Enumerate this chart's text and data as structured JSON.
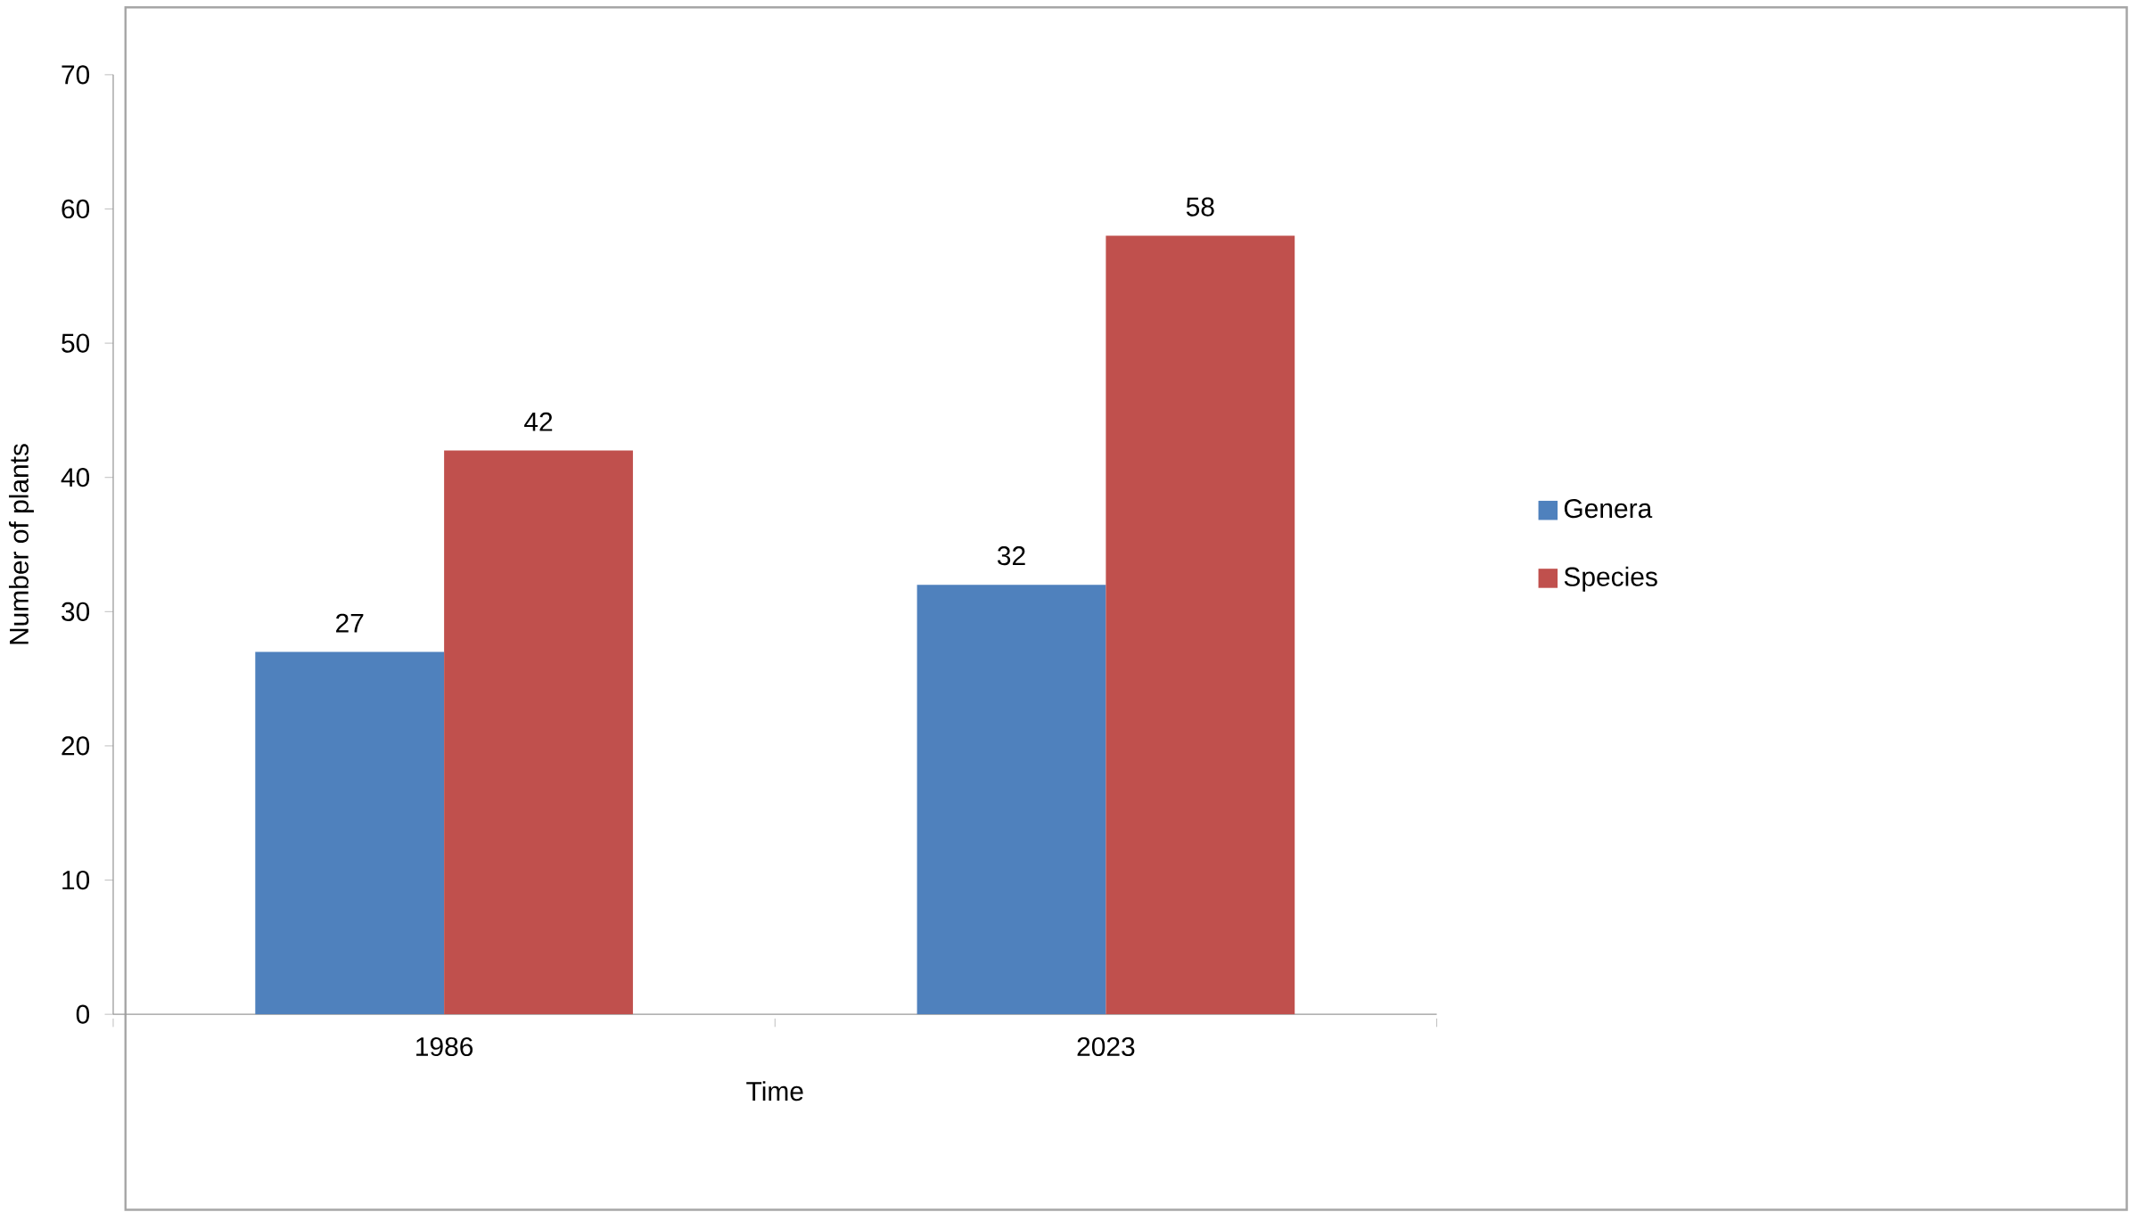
{
  "chart_data": {
    "type": "bar",
    "xlabel": "Time",
    "ylabel": "Number of plants",
    "categories": [
      "1986",
      "2023"
    ],
    "series": [
      {
        "name": "Genera",
        "color": "#4f81bd",
        "values": [
          27,
          32
        ]
      },
      {
        "name": "Species",
        "color": "#c0504d",
        "values": [
          42,
          58
        ]
      }
    ],
    "ylim": [
      0,
      70
    ],
    "yticks": [
      0,
      10,
      20,
      30,
      40,
      50,
      60,
      70
    ],
    "grid": false,
    "legend": "right",
    "data_labels": true
  }
}
